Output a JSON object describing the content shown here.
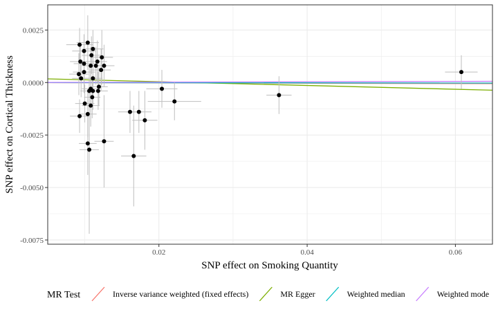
{
  "chart_data": {
    "type": "scatter",
    "xlabel": "SNP effect on Smoking Quantity",
    "ylabel": "SNP effect on Cortical Thickness",
    "xlim": [
      0.005,
      0.065
    ],
    "ylim": [
      -0.0077,
      0.0037
    ],
    "x_ticks": [
      0.02,
      0.04,
      0.06
    ],
    "x_tick_labels": [
      "0.02",
      "0.04",
      "0.06"
    ],
    "y_ticks": [
      0.0025,
      0.0,
      -0.0025,
      -0.005,
      -0.0075
    ],
    "y_tick_labels": [
      "0.0025",
      "0.0000",
      "-0.0025",
      "-0.0050",
      "-0.0075"
    ],
    "grid": true,
    "legend_position": "bottom",
    "legend_title": "MR Test",
    "points": [
      {
        "x": 0.0093,
        "y": 0.0018,
        "xse": 0.0018,
        "yse": 0.0008
      },
      {
        "x": 0.0104,
        "y": 0.0019,
        "xse": 0.0015,
        "yse": 0.0013
      },
      {
        "x": 0.0111,
        "y": 0.0016,
        "xse": 0.0014,
        "yse": 0.0009
      },
      {
        "x": 0.0099,
        "y": 0.0015,
        "xse": 0.0016,
        "yse": 0.0008
      },
      {
        "x": 0.0109,
        "y": 0.0013,
        "xse": 0.0013,
        "yse": 0.0009
      },
      {
        "x": 0.0123,
        "y": 0.0012,
        "xse": 0.0015,
        "yse": 0.0013
      },
      {
        "x": 0.0094,
        "y": 0.001,
        "xse": 0.0014,
        "yse": 0.0009
      },
      {
        "x": 0.0099,
        "y": 0.0009,
        "xse": 0.0014,
        "yse": 0.0009
      },
      {
        "x": 0.0117,
        "y": 0.001,
        "xse": 0.0013,
        "yse": 0.001
      },
      {
        "x": 0.0126,
        "y": 0.0008,
        "xse": 0.0014,
        "yse": 0.001
      },
      {
        "x": 0.0115,
        "y": 0.0008,
        "xse": 0.0013,
        "yse": 0.0009
      },
      {
        "x": 0.0108,
        "y": 0.0008,
        "xse": 0.0012,
        "yse": 0.0009
      },
      {
        "x": 0.0099,
        "y": 0.0005,
        "xse": 0.0015,
        "yse": 0.001
      },
      {
        "x": 0.0122,
        "y": 0.0006,
        "xse": 0.0013,
        "yse": 0.001
      },
      {
        "x": 0.0092,
        "y": 0.0004,
        "xse": 0.0013,
        "yse": 0.001
      },
      {
        "x": 0.0095,
        "y": 0.0002,
        "xse": 0.0012,
        "yse": 0.0009
      },
      {
        "x": 0.0111,
        "y": 0.0002,
        "xse": 0.0013,
        "yse": 0.001
      },
      {
        "x": 0.0119,
        "y": -0.0002,
        "xse": 0.0012,
        "yse": 0.0009
      },
      {
        "x": 0.0106,
        "y": -0.0004,
        "xse": 0.0012,
        "yse": 0.001
      },
      {
        "x": 0.0111,
        "y": -0.0004,
        "xse": 0.0012,
        "yse": 0.0009
      },
      {
        "x": 0.0118,
        "y": -0.0004,
        "xse": 0.0013,
        "yse": 0.0009
      },
      {
        "x": 0.0108,
        "y": -0.0003,
        "xse": 0.0012,
        "yse": 0.0009
      },
      {
        "x": 0.011,
        "y": -0.0007,
        "xse": 0.0011,
        "yse": 0.001
      },
      {
        "x": 0.01,
        "y": -0.001,
        "xse": 0.0013,
        "yse": 0.0009
      },
      {
        "x": 0.0108,
        "y": -0.0011,
        "xse": 0.0012,
        "yse": 0.001
      },
      {
        "x": 0.0104,
        "y": -0.0015,
        "xse": 0.0012,
        "yse": 0.0011
      },
      {
        "x": 0.0093,
        "y": -0.0016,
        "xse": 0.0013,
        "yse": 0.0008
      },
      {
        "x": 0.0126,
        "y": -0.0028,
        "xse": 0.0013,
        "yse": 0.0022
      },
      {
        "x": 0.0104,
        "y": -0.0029,
        "xse": 0.0012,
        "yse": 0.0015
      },
      {
        "x": 0.0106,
        "y": -0.0032,
        "xse": 0.0013,
        "yse": 0.004
      },
      {
        "x": 0.0161,
        "y": -0.0014,
        "xse": 0.0016,
        "yse": 0.001
      },
      {
        "x": 0.0173,
        "y": -0.0014,
        "xse": 0.0017,
        "yse": 0.001
      },
      {
        "x": 0.0181,
        "y": -0.0018,
        "xse": 0.0017,
        "yse": 0.0014
      },
      {
        "x": 0.0166,
        "y": -0.0035,
        "xse": 0.0017,
        "yse": 0.0024
      },
      {
        "x": 0.0204,
        "y": -0.0003,
        "xse": 0.0021,
        "yse": 0.0009
      },
      {
        "x": 0.0221,
        "y": -0.0009,
        "xse": 0.0036,
        "yse": 0.0009
      },
      {
        "x": 0.0362,
        "y": -0.0006,
        "xse": 0.0017,
        "yse": 0.0009
      },
      {
        "x": 0.0608,
        "y": 0.0005,
        "xse": 0.0022,
        "yse": 0.0008
      }
    ],
    "series": [
      {
        "name": "Inverse variance weighted (fixed effects)",
        "intercept": 0.0,
        "slope": -0.0008,
        "color": "#F8766D"
      },
      {
        "name": "MR Egger",
        "intercept": 0.00022,
        "slope": -0.009,
        "color": "#7CAE00"
      },
      {
        "name": "Weighted median",
        "intercept": 0.0,
        "slope": -0.0004,
        "color": "#00BFC4"
      },
      {
        "name": "Weighted mode",
        "intercept": 0.0,
        "slope": 0.0009,
        "color": "#C77CFF"
      }
    ],
    "colors": {
      "point": "#000000",
      "error_bar": "#bebebe",
      "grid": "#ebebeb",
      "panel_border": "#333333"
    }
  }
}
